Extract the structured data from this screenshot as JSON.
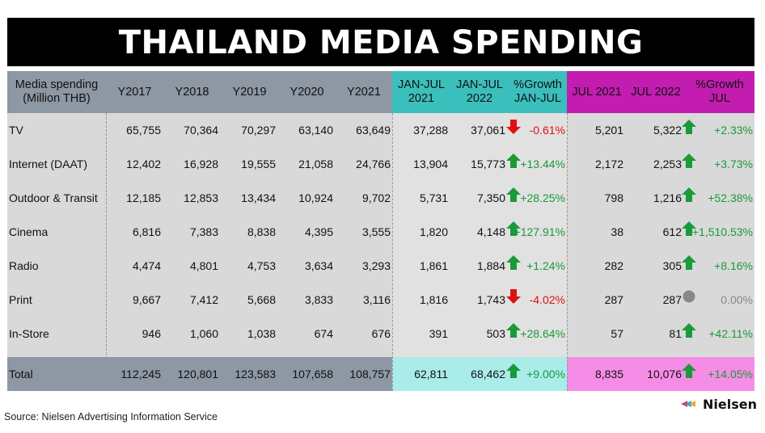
{
  "title": "THAILAND MEDIA SPENDING",
  "headers": [
    "Media spending\n(Million THB)",
    "Y2017",
    "Y2018",
    "Y2019",
    "Y2020",
    "Y2021",
    "JAN-JUL\n2021",
    "JAN-JUL\n2022",
    "%Growth\nJAN-JUL",
    "JUL 2021",
    "JUL 2022",
    "%Growth\nJUL"
  ],
  "rows": [
    {
      "label": "TV",
      "y2017": "65,755",
      "y2018": "70,364",
      "y2019": "70,297",
      "y2020": "63,140",
      "y2021": "63,649",
      "janjul2021": "37,288",
      "janjul2022": "37,061",
      "growth_janjul": "-0.61%",
      "growth_janjul_dir": "down",
      "jul2021": "5,201",
      "jul2022": "5,322",
      "growth_jul": "+2.33%",
      "growth_jul_dir": "up"
    },
    {
      "label": "Internet (DAAT)",
      "y2017": "12,402",
      "y2018": "16,928",
      "y2019": "19,555",
      "y2020": "21,058",
      "y2021": "24,766",
      "janjul2021": "13,904",
      "janjul2022": "15,773",
      "growth_janjul": "+13.44%",
      "growth_janjul_dir": "up",
      "jul2021": "2,172",
      "jul2022": "2,253",
      "growth_jul": "+3.73%",
      "growth_jul_dir": "up"
    },
    {
      "label": "Outdoor & Transit",
      "y2017": "12,185",
      "y2018": "12,853",
      "y2019": "13,434",
      "y2020": "10,924",
      "y2021": "9,702",
      "janjul2021": "5,731",
      "janjul2022": "7,350",
      "growth_janjul": "+28.25%",
      "growth_janjul_dir": "up",
      "jul2021": "798",
      "jul2022": "1,216",
      "growth_jul": "+52.38%",
      "growth_jul_dir": "up"
    },
    {
      "label": "Cinema",
      "y2017": "6,816",
      "y2018": "7,383",
      "y2019": "8,838",
      "y2020": "4,395",
      "y2021": "3,555",
      "janjul2021": "1,820",
      "janjul2022": "4,148",
      "growth_janjul": "+127.91%",
      "growth_janjul_dir": "up",
      "jul2021": "38",
      "jul2022": "612",
      "growth_jul": "+1,510.53%",
      "growth_jul_dir": "up"
    },
    {
      "label": "Radio",
      "y2017": "4,474",
      "y2018": "4,801",
      "y2019": "4,753",
      "y2020": "3,634",
      "y2021": "3,293",
      "janjul2021": "1,861",
      "janjul2022": "1,884",
      "growth_janjul": "+1.24%",
      "growth_janjul_dir": "up",
      "jul2021": "282",
      "jul2022": "305",
      "growth_jul": "+8.16%",
      "growth_jul_dir": "up"
    },
    {
      "label": "Print",
      "y2017": "9,667",
      "y2018": "7,412",
      "y2019": "5,668",
      "y2020": "3,833",
      "y2021": "3,116",
      "janjul2021": "1,816",
      "janjul2022": "1,743",
      "growth_janjul": "-4.02%",
      "growth_janjul_dir": "down",
      "jul2021": "287",
      "jul2022": "287",
      "growth_jul": "0.00%",
      "growth_jul_dir": "flat"
    },
    {
      "label": "In-Store",
      "y2017": "946",
      "y2018": "1,060",
      "y2019": "1,038",
      "y2020": "674",
      "y2021": "676",
      "janjul2021": "391",
      "janjul2022": "503",
      "growth_janjul": "+28.64%",
      "growth_janjul_dir": "up",
      "jul2021": "57",
      "jul2022": "81",
      "growth_jul": "+42.11%",
      "growth_jul_dir": "up"
    }
  ],
  "total": {
    "label": "Total",
    "y2017": "112,245",
    "y2018": "120,801",
    "y2019": "123,583",
    "y2020": "107,658",
    "y2021": "108,757",
    "janjul2021": "62,811",
    "janjul2022": "68,462",
    "growth_janjul": "+9.00%",
    "growth_janjul_dir": "up",
    "jul2021": "8,835",
    "jul2022": "10,076",
    "growth_jul": "+14.05%",
    "growth_jul_dir": "up"
  },
  "source": "Source: Nielsen Advertising Information Service",
  "logo_text": "Nielsen",
  "colors": {
    "up": "#1a9a3a",
    "down": "#e01010",
    "flat": "#888888",
    "header_gray": "#8e97a4",
    "header_cyan": "#3bbfbc",
    "header_magenta": "#c21db0"
  }
}
